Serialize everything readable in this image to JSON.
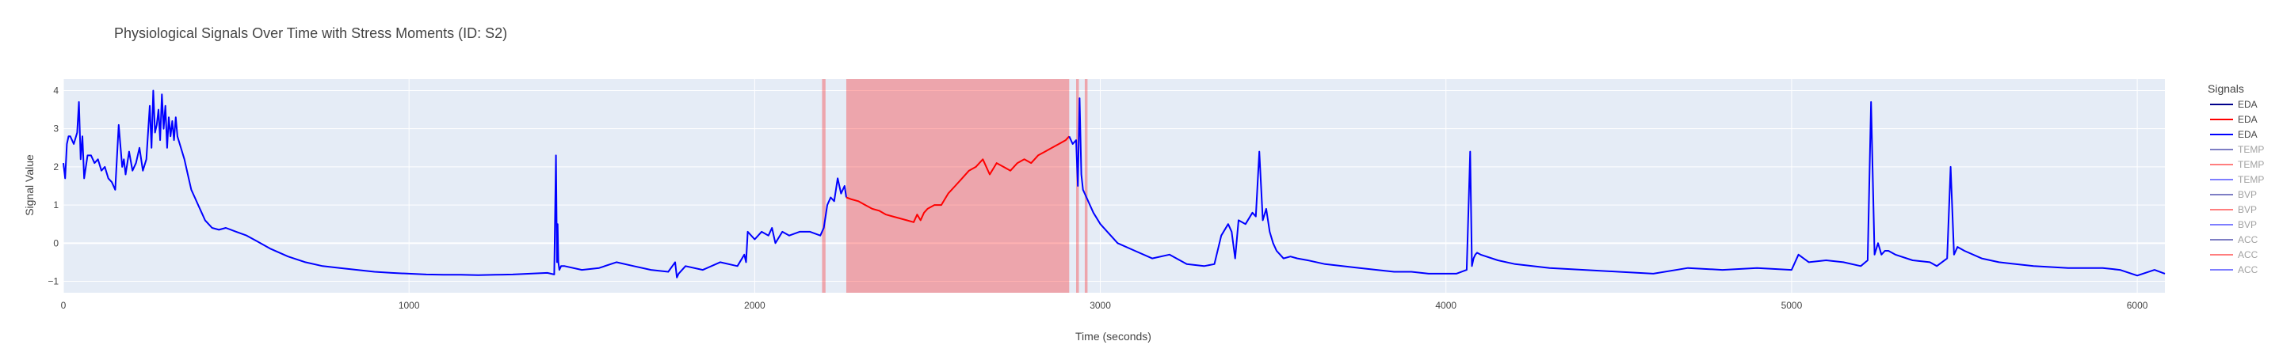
{
  "chart_data": {
    "type": "line",
    "title": "Physiological Signals Over Time with Stress Moments (ID: S2)",
    "xlabel": "Time (seconds)",
    "ylabel": "Signal Value",
    "xlim": [
      0,
      6080
    ],
    "ylim": [
      -1.3,
      4.3
    ],
    "x_ticks": [
      0,
      1000,
      2000,
      3000,
      4000,
      5000,
      6000
    ],
    "y_ticks": [
      -1,
      0,
      1,
      2,
      3,
      4
    ],
    "grid": true,
    "legend_title": "Signals",
    "legend_position": "right",
    "legend": [
      {
        "label": "EDA",
        "color": "#00008b",
        "visible": true
      },
      {
        "label": "EDA",
        "color": "#ff0000",
        "visible": true
      },
      {
        "label": "EDA",
        "color": "#0000ff",
        "visible": true
      },
      {
        "label": "TEMP",
        "color": "#00008b",
        "visible": false
      },
      {
        "label": "TEMP",
        "color": "#ff0000",
        "visible": false
      },
      {
        "label": "TEMP",
        "color": "#0000ff",
        "visible": false
      },
      {
        "label": "BVP",
        "color": "#00008b",
        "visible": false
      },
      {
        "label": "BVP",
        "color": "#ff0000",
        "visible": false
      },
      {
        "label": "BVP",
        "color": "#0000ff",
        "visible": false
      },
      {
        "label": "ACC",
        "color": "#00008b",
        "visible": false
      },
      {
        "label": "ACC",
        "color": "#ff0000",
        "visible": false
      },
      {
        "label": "ACC",
        "color": "#0000ff",
        "visible": false
      }
    ],
    "stress_regions": [
      {
        "x0": 2195,
        "x1": 2205
      },
      {
        "x0": 2265,
        "x1": 2910
      },
      {
        "x0": 2930,
        "x1": 2938
      },
      {
        "x0": 2955,
        "x1": 2963
      }
    ],
    "series": [
      {
        "color": "#0000ff",
        "x": [
          0,
          5,
          10,
          15,
          20,
          30,
          40,
          45,
          50,
          55,
          60,
          70,
          80,
          90,
          100,
          110,
          120,
          130,
          140,
          150,
          160,
          170,
          175,
          180,
          190,
          200,
          210,
          220,
          230,
          240,
          250,
          255,
          260,
          265,
          270,
          275,
          280,
          285,
          290,
          295,
          300,
          305,
          310,
          315,
          320,
          325,
          330,
          340,
          350,
          360,
          370,
          380,
          390,
          400,
          410,
          420,
          430,
          450,
          470,
          500,
          530,
          560,
          600,
          650,
          700,
          750,
          800,
          850,
          900,
          950,
          1000,
          1050,
          1100,
          1150,
          1200,
          1250,
          1300,
          1350,
          1400,
          1420,
          1425,
          1428,
          1430,
          1432,
          1435,
          1440,
          1450,
          1500,
          1550,
          1600,
          1650,
          1700,
          1750,
          1770,
          1775,
          1780,
          1800,
          1850,
          1900,
          1950,
          1970,
          1975,
          1980,
          2000,
          2020,
          2040,
          2050,
          2060,
          2080,
          2100,
          2130,
          2160,
          2190,
          2200,
          2210,
          2220,
          2230,
          2240,
          2250,
          2260,
          2265
        ],
        "y": [
          2.1,
          1.7,
          2.6,
          2.8,
          2.8,
          2.6,
          2.9,
          3.7,
          2.2,
          2.8,
          1.7,
          2.3,
          2.3,
          2.1,
          2.2,
          1.9,
          2.0,
          1.7,
          1.6,
          1.4,
          3.1,
          2.0,
          2.2,
          1.8,
          2.4,
          1.9,
          2.1,
          2.5,
          1.9,
          2.2,
          3.6,
          2.5,
          4.0,
          2.9,
          3.1,
          3.5,
          2.7,
          3.9,
          3.0,
          3.6,
          2.5,
          3.3,
          2.8,
          3.2,
          2.7,
          3.3,
          2.8,
          2.5,
          2.2,
          1.8,
          1.4,
          1.2,
          1.0,
          0.8,
          0.6,
          0.5,
          0.4,
          0.35,
          0.4,
          0.3,
          0.2,
          0.05,
          -0.15,
          -0.35,
          -0.5,
          -0.6,
          -0.65,
          -0.7,
          -0.75,
          -0.78,
          -0.8,
          -0.82,
          -0.83,
          -0.83,
          -0.84,
          -0.83,
          -0.82,
          -0.8,
          -0.78,
          -0.82,
          2.3,
          -0.5,
          0.5,
          -0.5,
          -0.7,
          -0.6,
          -0.6,
          -0.7,
          -0.65,
          -0.5,
          -0.6,
          -0.7,
          -0.75,
          -0.5,
          -0.9,
          -0.8,
          -0.6,
          -0.7,
          -0.5,
          -0.6,
          -0.3,
          -0.5,
          0.3,
          0.1,
          0.3,
          0.2,
          0.4,
          0.0,
          0.3,
          0.2,
          0.3,
          0.3,
          0.2,
          0.4,
          1.0,
          1.2,
          1.1,
          1.7,
          1.3,
          1.5,
          1.2
        ]
      },
      {
        "color": "#ff0000",
        "x": [
          2265,
          2280,
          2300,
          2320,
          2340,
          2360,
          2380,
          2400,
          2420,
          2440,
          2460,
          2470,
          2480,
          2490,
          2500,
          2520,
          2540,
          2560,
          2580,
          2600,
          2620,
          2640,
          2660,
          2680,
          2700,
          2720,
          2740,
          2760,
          2780,
          2800,
          2820,
          2840,
          2860,
          2880,
          2900,
          2910
        ],
        "y": [
          1.2,
          1.15,
          1.1,
          1.0,
          0.9,
          0.85,
          0.75,
          0.7,
          0.65,
          0.6,
          0.55,
          0.75,
          0.6,
          0.8,
          0.9,
          1.0,
          1.0,
          1.3,
          1.5,
          1.7,
          1.9,
          2.0,
          2.2,
          1.8,
          2.1,
          2.0,
          1.9,
          2.1,
          2.2,
          2.1,
          2.3,
          2.4,
          2.5,
          2.6,
          2.7,
          2.8
        ]
      },
      {
        "color": "#0000ff",
        "x": [
          2910,
          2920,
          2930,
          2935,
          2940,
          2945,
          2950,
          2960,
          2980,
          3000,
          3050,
          3100,
          3150,
          3200,
          3250,
          3300,
          3330,
          3350,
          3370,
          3380,
          3390,
          3400,
          3420,
          3440,
          3450,
          3460,
          3470,
          3480,
          3490,
          3500,
          3510,
          3520,
          3530,
          3550,
          3570,
          3600,
          3650,
          3700,
          3750,
          3800,
          3850,
          3900,
          3950,
          4000,
          4030,
          4060,
          4070,
          4075,
          4080,
          4085,
          4090,
          4100,
          4150,
          4200,
          4300,
          4400,
          4500,
          4600,
          4700,
          4800,
          4900,
          5000,
          5020,
          5050,
          5100,
          5150,
          5200,
          5220,
          5230,
          5240,
          5250,
          5260,
          5270,
          5280,
          5300,
          5350,
          5400,
          5420,
          5450,
          5460,
          5470,
          5480,
          5500,
          5550,
          5600,
          5700,
          5800,
          5900,
          5950,
          6000,
          6050,
          6080
        ],
        "y": [
          2.8,
          2.6,
          2.7,
          1.5,
          3.8,
          1.8,
          1.4,
          1.2,
          0.8,
          0.5,
          0.0,
          -0.2,
          -0.4,
          -0.3,
          -0.55,
          -0.6,
          -0.55,
          0.2,
          0.5,
          0.3,
          -0.4,
          0.6,
          0.5,
          0.8,
          0.7,
          2.4,
          0.6,
          0.9,
          0.3,
          0.0,
          -0.2,
          -0.3,
          -0.4,
          -0.35,
          -0.4,
          -0.45,
          -0.55,
          -0.6,
          -0.65,
          -0.7,
          -0.75,
          -0.75,
          -0.8,
          -0.8,
          -0.8,
          -0.7,
          2.4,
          -0.6,
          -0.4,
          -0.3,
          -0.25,
          -0.3,
          -0.45,
          -0.55,
          -0.65,
          -0.7,
          -0.75,
          -0.8,
          -0.65,
          -0.7,
          -0.65,
          -0.7,
          -0.3,
          -0.5,
          -0.45,
          -0.5,
          -0.6,
          -0.45,
          3.7,
          -0.3,
          0.0,
          -0.3,
          -0.2,
          -0.2,
          -0.3,
          -0.45,
          -0.5,
          -0.6,
          -0.4,
          2.0,
          -0.3,
          -0.1,
          -0.2,
          -0.4,
          -0.5,
          -0.6,
          -0.65,
          -0.65,
          -0.7,
          -0.85,
          -0.7,
          -0.8
        ]
      }
    ]
  }
}
